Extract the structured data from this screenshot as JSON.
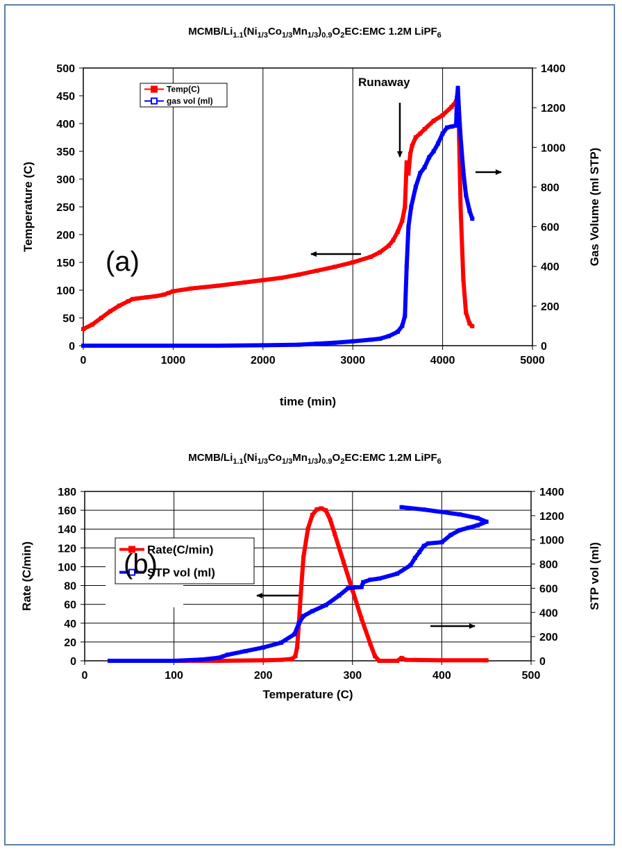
{
  "chart_data": [
    {
      "type": "line",
      "title_parts": [
        "MCMB/Li",
        "1.1",
        "(Ni",
        "1/3",
        "Co",
        "1/3",
        "Mn",
        "1/3",
        ")",
        "0.9",
        "O",
        "2",
        "EC:EMC 1.2M LiPF",
        "6"
      ],
      "panel_label": "(a)",
      "xlabel": "time (min)",
      "ylabel": "Temperature (C)",
      "y2label": "Gas Volume (ml STP)",
      "xlim": [
        0,
        5000
      ],
      "ylim": [
        0,
        500
      ],
      "y2lim": [
        0,
        1400
      ],
      "xticks": [
        "0",
        "1000",
        "2000",
        "3000",
        "4000",
        "5000"
      ],
      "yticks": [
        "0",
        "50",
        "100",
        "150",
        "200",
        "250",
        "300",
        "350",
        "400",
        "450",
        "500"
      ],
      "y2ticks": [
        "0",
        "200",
        "400",
        "600",
        "800",
        "1000",
        "1200",
        "1400"
      ],
      "annotation": "Runaway",
      "grid": "vertical",
      "legend": "top-left",
      "series": [
        {
          "name": "Temp(C)",
          "color": "#ff0000",
          "axis": "left",
          "x": [
            0,
            100,
            200,
            300,
            400,
            500,
            550,
            600,
            700,
            800,
            900,
            950,
            1000,
            1200,
            1500,
            1800,
            2000,
            2200,
            2400,
            2600,
            2800,
            3000,
            3200,
            3300,
            3400,
            3450,
            3500,
            3550,
            3580,
            3600,
            3620,
            3640,
            3660,
            3700,
            3750,
            3800,
            3900,
            4000,
            4100,
            4150,
            4170,
            4180,
            4200,
            4230,
            4260,
            4300,
            4330
          ],
          "y": [
            30,
            38,
            50,
            62,
            72,
            80,
            84,
            85,
            87,
            89,
            92,
            95,
            98,
            103,
            108,
            114,
            118,
            122,
            128,
            135,
            142,
            150,
            160,
            168,
            180,
            190,
            205,
            225,
            250,
            330,
            310,
            345,
            360,
            375,
            382,
            390,
            405,
            415,
            430,
            440,
            450,
            400,
            250,
            120,
            60,
            40,
            35
          ]
        },
        {
          "name": "gas vol (ml)",
          "color": "#0000ff",
          "axis": "right",
          "x": [
            0,
            500,
            1000,
            1500,
            2000,
            2400,
            2600,
            2800,
            3000,
            3200,
            3300,
            3400,
            3500,
            3550,
            3580,
            3600,
            3620,
            3650,
            3700,
            3750,
            3800,
            3850,
            3900,
            3950,
            4000,
            4050,
            4100,
            4150,
            4160,
            4170,
            4180,
            4200,
            4230,
            4260,
            4300,
            4330
          ],
          "y": [
            0,
            0,
            0,
            0,
            2,
            5,
            10,
            15,
            22,
            30,
            35,
            48,
            70,
            100,
            150,
            400,
            600,
            700,
            800,
            870,
            900,
            950,
            980,
            1020,
            1070,
            1100,
            1105,
            1110,
            1250,
            1300,
            1200,
            1050,
            880,
            760,
            680,
            640
          ]
        }
      ]
    },
    {
      "type": "line",
      "title_parts": [
        "MCMB/Li",
        "1.1",
        "(Ni",
        "1/3",
        "Co",
        "1/3",
        "Mn",
        "1/3",
        ")",
        "0.9",
        "O",
        "2",
        "EC:EMC 1.2M LiPF",
        "6"
      ],
      "panel_label": "(b)",
      "xlabel": "Temperature (C)",
      "ylabel": "Rate (C/min)",
      "y2label": "STP vol (ml)",
      "xlim": [
        0,
        500
      ],
      "ylim": [
        0,
        180
      ],
      "y2lim": [
        0,
        1400
      ],
      "xticks": [
        "0",
        "100",
        "200",
        "300",
        "400",
        "500"
      ],
      "yticks": [
        "0",
        "20",
        "40",
        "60",
        "80",
        "100",
        "120",
        "140",
        "160",
        "180"
      ],
      "y2ticks": [
        "0",
        "200",
        "400",
        "600",
        "800",
        "1000",
        "1200",
        "1400"
      ],
      "grid": "both",
      "legend": "top-left",
      "series": [
        {
          "name": "Rate(C/min)",
          "color": "#ff0000",
          "axis": "left",
          "x": [
            85,
            100,
            150,
            200,
            220,
            232,
            236,
            238,
            240,
            242,
            245,
            250,
            255,
            260,
            265,
            270,
            275,
            280,
            290,
            300,
            310,
            320,
            325,
            330,
            350,
            355,
            360,
            400,
            450
          ],
          "y": [
            0,
            0,
            0,
            0.5,
            1,
            2,
            5,
            15,
            40,
            70,
            110,
            140,
            155,
            161,
            162,
            160,
            150,
            135,
            105,
            75,
            45,
            18,
            5,
            0,
            0,
            3,
            1,
            0.5,
            0.5
          ]
        },
        {
          "name": "STP vol (ml)",
          "color": "#0000ff",
          "axis": "right",
          "x": [
            28,
            70,
            100,
            130,
            150,
            160,
            180,
            200,
            220,
            235,
            240,
            245,
            255,
            270,
            285,
            295,
            300,
            310,
            312,
            320,
            330,
            350,
            365,
            370,
            375,
            380,
            385,
            400,
            410,
            420,
            430,
            440,
            450,
            440,
            420,
            380,
            355
          ],
          "y": [
            0,
            0,
            0,
            10,
            25,
            50,
            80,
            110,
            150,
            220,
            310,
            370,
            410,
            460,
            540,
            600,
            605,
            610,
            650,
            670,
            680,
            720,
            790,
            850,
            900,
            950,
            970,
            980,
            1040,
            1080,
            1100,
            1120,
            1150,
            1180,
            1210,
            1250,
            1270
          ]
        }
      ]
    }
  ]
}
